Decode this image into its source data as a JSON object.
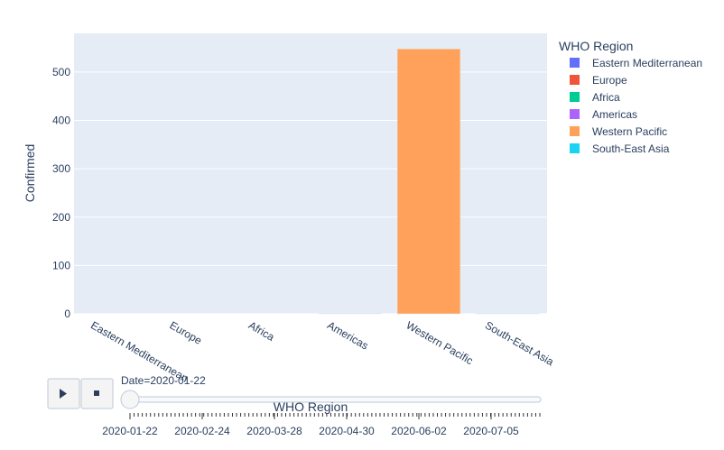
{
  "chart_data": {
    "type": "bar",
    "ylabel": "Confirmed",
    "xlabel": "WHO Region",
    "categories": [
      "Eastern Mediterranean",
      "Europe",
      "Africa",
      "Americas",
      "Western Pacific",
      "South-East Asia"
    ],
    "values": [
      0,
      0,
      0,
      1,
      548,
      1
    ],
    "ylim": [
      0,
      580
    ],
    "yticks": [
      0,
      100,
      200,
      300,
      400,
      500
    ],
    "grid": true,
    "legend": {
      "title": "WHO Region",
      "position": "top-right",
      "entries": [
        {
          "name": "Eastern Mediterranean",
          "color": "#636efa"
        },
        {
          "name": "Europe",
          "color": "#EF553B"
        },
        {
          "name": "Africa",
          "color": "#00cc96"
        },
        {
          "name": "Americas",
          "color": "#ab63fa"
        },
        {
          "name": "Western Pacific",
          "color": "#FFA15A"
        },
        {
          "name": "South-East Asia",
          "color": "#19d3f3"
        }
      ]
    }
  },
  "slider": {
    "current_label": "Date=2020-01-22",
    "tick_labels": [
      "2020-01-22",
      "2020-02-24",
      "2020-03-28",
      "2020-04-30",
      "2020-06-02",
      "2020-07-05"
    ],
    "position": 0
  },
  "controls": {
    "play_icon": "play-icon",
    "stop_icon": "stop-icon"
  },
  "colors": {
    "plot_bg": "#e5ecf6",
    "grid": "#ffffff",
    "text": "#2a3f5f"
  }
}
